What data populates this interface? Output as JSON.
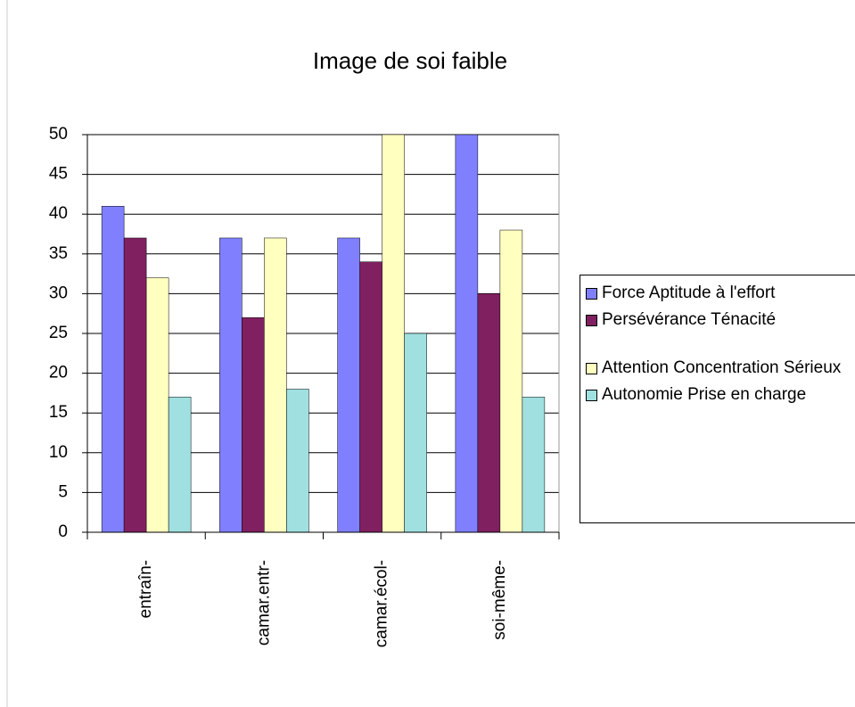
{
  "chart_data": {
    "type": "bar",
    "title": "Image de soi faible",
    "categories": [
      "entraîn-",
      "camar.entr-",
      "camar.écol-",
      "soi-même-"
    ],
    "series": [
      {
        "name": "Force Aptitude à l'effort",
        "color": "#8080ff",
        "values": [
          41,
          37,
          37,
          50
        ]
      },
      {
        "name": "Persévérance Ténacité",
        "color": "#802060",
        "values": [
          37,
          27,
          34,
          30
        ]
      },
      {
        "name": "Attention Concentration Sérieux",
        "color": "#ffffc0",
        "values": [
          32,
          37,
          50,
          38
        ]
      },
      {
        "name": "Autonomie Prise en charge",
        "color": "#a0e0e0",
        "values": [
          17,
          18,
          25,
          17
        ]
      }
    ],
    "ylim": [
      0,
      50
    ],
    "yticks": [
      0,
      5,
      10,
      15,
      20,
      25,
      30,
      35,
      40,
      45,
      50
    ],
    "grid": true,
    "legend": "right"
  }
}
